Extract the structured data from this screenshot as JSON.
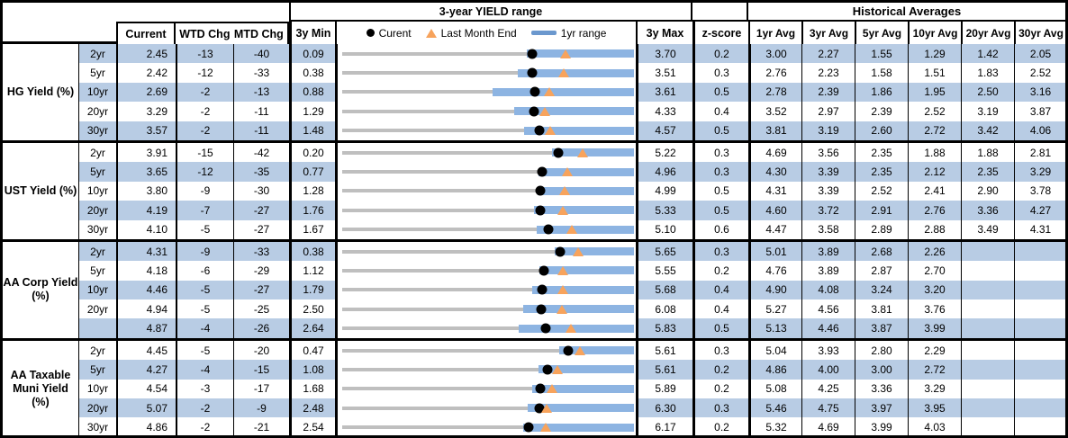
{
  "header": {
    "range_title": "3-year YIELD range",
    "hist_title": "Historical Averages",
    "col_current": "Current",
    "col_wtd": "WTD Chg",
    "col_mtd": "MTD Chg",
    "col_min": "3y Min",
    "col_max": "3y Max",
    "col_z": "z-score",
    "avg_cols": [
      "1yr Avg",
      "3yr Avg",
      "5yr Avg",
      "10yr Avg",
      "20yr Avg",
      "30yr Avg"
    ],
    "legend": {
      "current": "Curent",
      "lme": "Last Month End",
      "range": "1yr range"
    }
  },
  "colors": {
    "row_band_blue": "#B8CCE4",
    "bar_blue": "#8DB4E2",
    "legend_dash_blue": "#6B98CE",
    "marker_orange": "#F7A35C",
    "track_gray": "#BFBFBF",
    "border_black": "#000000"
  },
  "chart_data": {
    "type": "table",
    "title": "3-year YIELD range",
    "columns": [
      "Current",
      "WTD Chg",
      "MTD Chg",
      "3y Min",
      "3y range bullet chart",
      "3y Max",
      "z-score",
      "1yr Avg",
      "3yr Avg",
      "5yr Avg",
      "10yr Avg",
      "20yr Avg",
      "30yr Avg"
    ],
    "legend": [
      "Curent (black dot)",
      "Last Month End (orange triangle)",
      "1yr range (blue bar)"
    ],
    "groups": [
      {
        "label": "HG Yield (%)",
        "rows": [
          {
            "tenor": "2yr",
            "current": "2.45",
            "wtd": "-13",
            "mtd": "-40",
            "min": "0.09",
            "max": "3.70",
            "z": "0.2",
            "avgs": [
              "3.00",
              "2.27",
              "1.55",
              "1.29",
              "1.42",
              "2.05"
            ],
            "chart": {
              "bar": 63.5,
              "dot": 65.4,
              "tri": 76.4
            }
          },
          {
            "tenor": "5yr",
            "current": "2.42",
            "wtd": "-12",
            "mtd": "-33",
            "min": "0.38",
            "max": "3.51",
            "z": "0.3",
            "avgs": [
              "2.76",
              "2.23",
              "1.58",
              "1.51",
              "1.83",
              "2.52"
            ],
            "chart": {
              "bar": 60.5,
              "dot": 65.2,
              "tri": 75.7
            }
          },
          {
            "tenor": "10yr",
            "current": "2.69",
            "wtd": "-2",
            "mtd": "-13",
            "min": "0.88",
            "max": "3.61",
            "z": "0.5",
            "avgs": [
              "2.78",
              "2.39",
              "1.86",
              "1.95",
              "2.50",
              "3.16"
            ],
            "chart": {
              "bar": 52.0,
              "dot": 66.3,
              "tri": 71.1
            }
          },
          {
            "tenor": "20yr",
            "current": "3.29",
            "wtd": "-2",
            "mtd": "-11",
            "min": "1.29",
            "max": "4.33",
            "z": "0.4",
            "avgs": [
              "3.52",
              "2.97",
              "2.39",
              "2.52",
              "3.19",
              "3.87"
            ],
            "chart": {
              "bar": 59.3,
              "dot": 65.8,
              "tri": 69.4
            }
          },
          {
            "tenor": "30yr",
            "current": "3.57",
            "wtd": "-2",
            "mtd": "-11",
            "min": "1.48",
            "max": "4.57",
            "z": "0.5",
            "avgs": [
              "3.81",
              "3.19",
              "2.60",
              "2.72",
              "3.42",
              "4.06"
            ],
            "chart": {
              "bar": 62.6,
              "dot": 67.6,
              "tri": 71.2
            }
          }
        ]
      },
      {
        "label": "UST Yield (%)",
        "rows": [
          {
            "tenor": "2yr",
            "current": "3.91",
            "wtd": "-15",
            "mtd": "-42",
            "min": "0.20",
            "max": "5.22",
            "z": "0.3",
            "avgs": [
              "4.69",
              "3.56",
              "2.35",
              "1.88",
              "1.88",
              "2.81"
            ],
            "chart": {
              "bar": 72.0,
              "dot": 73.9,
              "tri": 82.3
            }
          },
          {
            "tenor": "5yr",
            "current": "3.65",
            "wtd": "-12",
            "mtd": "-35",
            "min": "0.77",
            "max": "4.96",
            "z": "0.3",
            "avgs": [
              "4.30",
              "3.39",
              "2.35",
              "2.12",
              "2.35",
              "3.29"
            ],
            "chart": {
              "bar": 67.5,
              "dot": 68.7,
              "tri": 77.1
            }
          },
          {
            "tenor": "10yr",
            "current": "3.80",
            "wtd": "-9",
            "mtd": "-30",
            "min": "1.28",
            "max": "4.99",
            "z": "0.5",
            "avgs": [
              "4.31",
              "3.39",
              "2.52",
              "2.41",
              "2.90",
              "3.78"
            ],
            "chart": {
              "bar": 67.0,
              "dot": 67.9,
              "tri": 76.0
            }
          },
          {
            "tenor": "20yr",
            "current": "4.19",
            "wtd": "-7",
            "mtd": "-27",
            "min": "1.76",
            "max": "5.33",
            "z": "0.5",
            "avgs": [
              "4.60",
              "3.72",
              "2.91",
              "2.76",
              "3.36",
              "4.27"
            ],
            "chart": {
              "bar": 66.0,
              "dot": 68.1,
              "tri": 75.6
            }
          },
          {
            "tenor": "30yr",
            "current": "4.10",
            "wtd": "-5",
            "mtd": "-27",
            "min": "1.67",
            "max": "5.10",
            "z": "0.6",
            "avgs": [
              "4.47",
              "3.58",
              "2.89",
              "2.88",
              "3.49",
              "4.31"
            ],
            "chart": {
              "bar": 66.9,
              "dot": 70.8,
              "tri": 78.7
            }
          }
        ]
      },
      {
        "label": "AA Corp Yield\n(%)",
        "rows": [
          {
            "tenor": "2yr",
            "current": "4.31",
            "wtd": "-9",
            "mtd": "-33",
            "min": "0.38",
            "max": "5.65",
            "z": "0.3",
            "avgs": [
              "5.01",
              "3.89",
              "2.68",
              "2.26",
              "",
              ""
            ],
            "chart": {
              "bar": 72.7,
              "dot": 74.6,
              "tri": 80.8
            }
          },
          {
            "tenor": "5yr",
            "current": "4.18",
            "wtd": "-6",
            "mtd": "-29",
            "min": "1.12",
            "max": "5.55",
            "z": "0.2",
            "avgs": [
              "4.76",
              "3.89",
              "2.87",
              "2.70",
              "",
              ""
            ],
            "chart": {
              "bar": 67.8,
              "dot": 69.1,
              "tri": 75.6
            }
          },
          {
            "tenor": "10yr",
            "current": "4.46",
            "wtd": "-5",
            "mtd": "-27",
            "min": "1.79",
            "max": "5.68",
            "z": "0.4",
            "avgs": [
              "4.90",
              "4.08",
              "3.24",
              "3.20",
              "",
              ""
            ],
            "chart": {
              "bar": 65.3,
              "dot": 68.6,
              "tri": 75.6
            }
          },
          {
            "tenor": "20yr",
            "current": "4.94",
            "wtd": "-5",
            "mtd": "-25",
            "min": "2.50",
            "max": "6.08",
            "z": "0.4",
            "avgs": [
              "5.27",
              "4.56",
              "3.81",
              "3.76",
              "",
              ""
            ],
            "chart": {
              "bar": 62.3,
              "dot": 68.2,
              "tri": 75.1
            }
          },
          {
            "tenor": "",
            "current": "4.87",
            "wtd": "-4",
            "mtd": "-26",
            "min": "2.64",
            "max": "5.83",
            "z": "0.5",
            "avgs": [
              "5.13",
              "4.46",
              "3.87",
              "3.99",
              "",
              ""
            ],
            "chart": {
              "bar": 60.8,
              "dot": 69.9,
              "tri": 78.1
            }
          }
        ]
      },
      {
        "label": "AA Taxable\nMuni Yield\n(%)",
        "rows": [
          {
            "tenor": "2yr",
            "current": "4.45",
            "wtd": "-5",
            "mtd": "-20",
            "min": "0.47",
            "max": "5.61",
            "z": "0.3",
            "avgs": [
              "5.04",
              "3.93",
              "2.80",
              "2.29",
              "",
              ""
            ],
            "chart": {
              "bar": 74.2,
              "dot": 77.4,
              "tri": 81.3
            }
          },
          {
            "tenor": "5yr",
            "current": "4.27",
            "wtd": "-4",
            "mtd": "-15",
            "min": "1.08",
            "max": "5.61",
            "z": "0.2",
            "avgs": [
              "4.86",
              "4.00",
              "3.00",
              "2.72",
              "",
              ""
            ],
            "chart": {
              "bar": 67.5,
              "dot": 70.4,
              "tri": 73.7
            }
          },
          {
            "tenor": "10yr",
            "current": "4.54",
            "wtd": "-3",
            "mtd": "-17",
            "min": "1.68",
            "max": "5.89",
            "z": "0.2",
            "avgs": [
              "5.08",
              "4.25",
              "3.36",
              "3.29",
              "",
              ""
            ],
            "chart": {
              "bar": 65.3,
              "dot": 67.9,
              "tri": 72.0
            }
          },
          {
            "tenor": "20yr",
            "current": "5.07",
            "wtd": "-2",
            "mtd": "-9",
            "min": "2.48",
            "max": "6.30",
            "z": "0.3",
            "avgs": [
              "5.46",
              "4.75",
              "3.97",
              "3.95",
              "",
              ""
            ],
            "chart": {
              "bar": 63.8,
              "dot": 67.8,
              "tri": 70.2
            }
          },
          {
            "tenor": "30yr",
            "current": "4.86",
            "wtd": "-2",
            "mtd": "-21",
            "min": "2.54",
            "max": "6.17",
            "z": "0.2",
            "avgs": [
              "5.32",
              "4.69",
              "3.99",
              "4.03",
              "",
              ""
            ],
            "chart": {
              "bar": 62.3,
              "dot": 63.9,
              "tri": 69.7
            }
          }
        ]
      }
    ]
  }
}
